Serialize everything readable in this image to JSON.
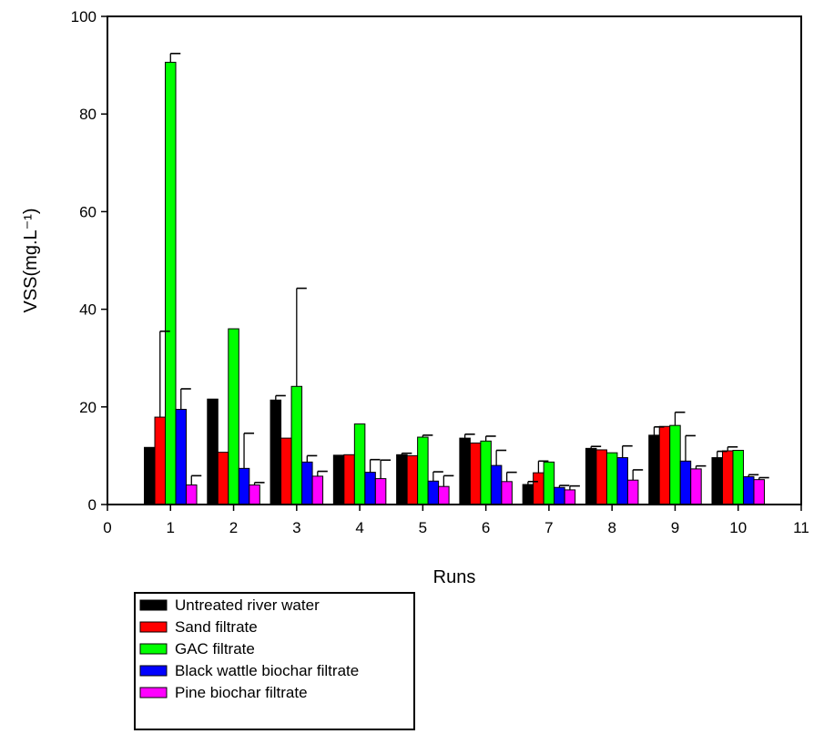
{
  "chart_data": {
    "type": "bar",
    "xlabel": "Runs",
    "ylabel": "VSS(mg.L⁻¹)",
    "xlim": [
      0,
      11
    ],
    "ylim": [
      0,
      100
    ],
    "x_ticks": [
      0,
      1,
      2,
      3,
      4,
      5,
      6,
      7,
      8,
      9,
      10,
      11
    ],
    "y_ticks": [
      0,
      20,
      40,
      60,
      80,
      100
    ],
    "categories": [
      1,
      2,
      3,
      4,
      5,
      6,
      7,
      8,
      9,
      10
    ],
    "grid": false,
    "legend_position": "bottom-left",
    "series": [
      {
        "name": "Untreated river water",
        "color": "#000000",
        "values": [
          11.7,
          21.6,
          21.4,
          10.1,
          10.2,
          13.6,
          4.1,
          11.5,
          14.2,
          9.6
        ],
        "errors": [
          0,
          0,
          0.9,
          0,
          0.3,
          0.8,
          0.6,
          0.4,
          1.7,
          1.3
        ]
      },
      {
        "name": "Sand filtrate",
        "color": "#ff0000",
        "values": [
          17.9,
          10.7,
          13.6,
          10.2,
          10,
          12.6,
          6.5,
          11.2,
          16,
          11
        ],
        "errors": [
          17.6,
          0,
          0,
          0,
          0,
          0,
          2.4,
          0,
          0,
          0.8
        ]
      },
      {
        "name": "GAC filtrate",
        "color": "#00ff00",
        "values": [
          90.6,
          36,
          24.2,
          16.5,
          13.8,
          13,
          8.7,
          10.6,
          16.2,
          11.1
        ],
        "errors": [
          1.8,
          0,
          20.1,
          0,
          0.4,
          1,
          0,
          0,
          2.7,
          0
        ]
      },
      {
        "name": "Black wattle biochar filtrate",
        "color": "#0000ff",
        "values": [
          19.5,
          7.4,
          8.7,
          6.6,
          4.8,
          8,
          3.5,
          9.6,
          8.9,
          5.7
        ],
        "errors": [
          4.2,
          7.2,
          1.3,
          2.6,
          1.9,
          3.1,
          0.4,
          2.4,
          5.2,
          0.4
        ]
      },
      {
        "name": "Pine biochar filtrate",
        "color": "#ff00ff",
        "values": [
          4,
          4,
          5.8,
          5.3,
          3.7,
          4.7,
          3,
          5,
          7.3,
          5.1
        ],
        "errors": [
          1.9,
          0.5,
          1,
          3.8,
          2.2,
          1.9,
          0.8,
          2.1,
          0.6,
          0.4
        ]
      }
    ]
  }
}
